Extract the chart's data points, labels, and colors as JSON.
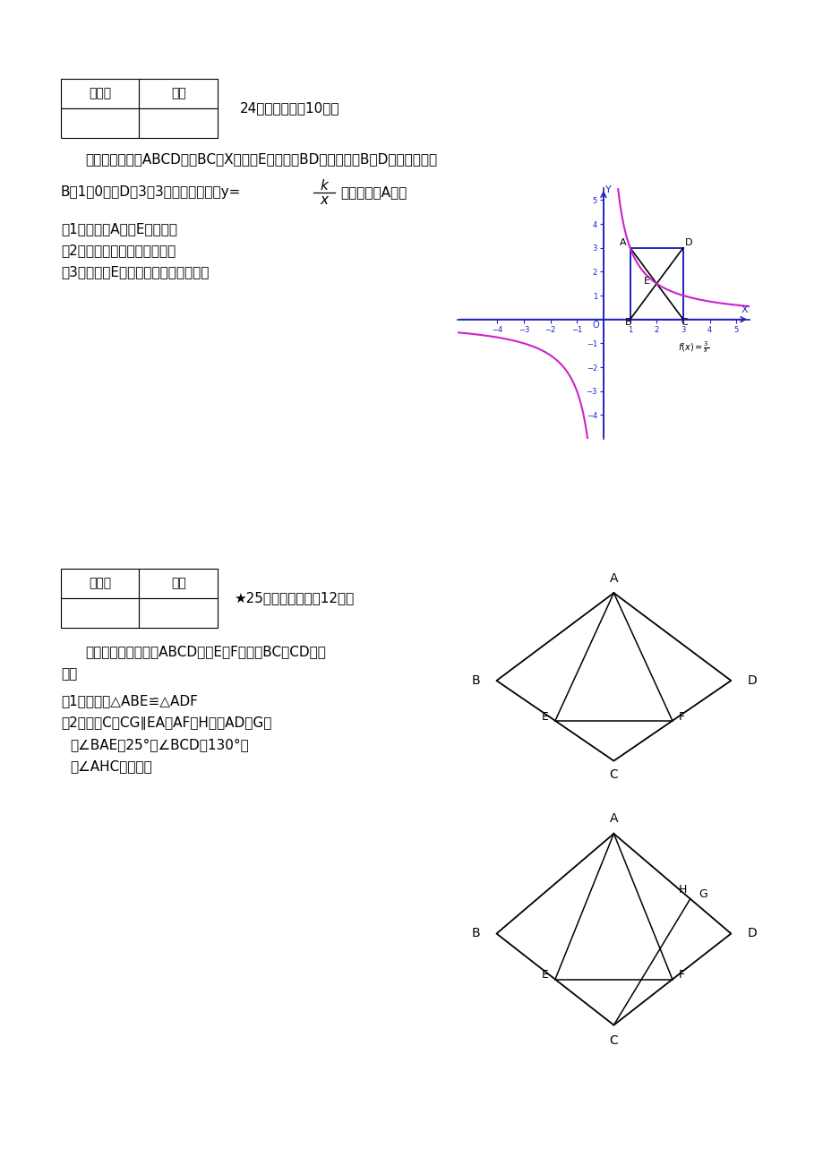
{
  "bg_color": "#ffffff",
  "page_width": 9.2,
  "page_height": 13.02
}
